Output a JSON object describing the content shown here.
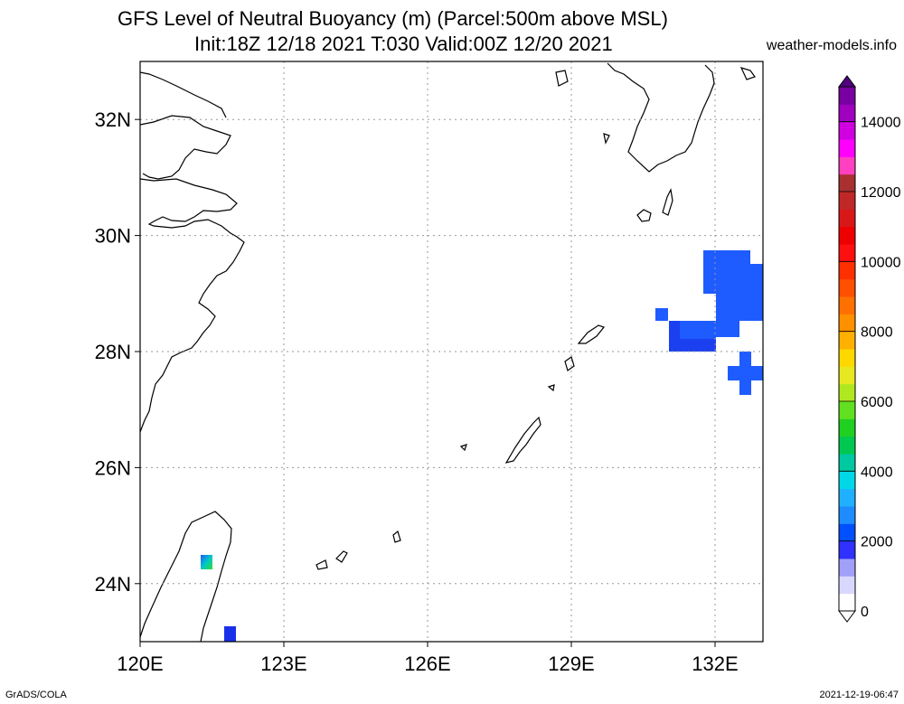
{
  "header": {
    "title_line1": "GFS Level of Neutral Buoyancy (m) (Parcel:500m above MSL)",
    "title_line2": "Init:18Z 12/18 2021 T:030 Valid:00Z 12/20 2021",
    "site": "weather-models.info"
  },
  "map": {
    "lat_labels": [
      "32N",
      "30N",
      "28N",
      "26N",
      "24N"
    ],
    "lon_labels": [
      "120E",
      "123E",
      "126E",
      "129E",
      "132E"
    ],
    "lat_values": [
      32,
      30,
      28,
      26,
      24
    ],
    "lon_values": [
      120,
      123,
      126,
      129,
      132
    ],
    "lon_range": [
      120,
      133
    ],
    "lat_range": [
      23,
      33
    ],
    "gridlines": true
  },
  "colorbar": {
    "labels": [
      "14000",
      "12000",
      "10000",
      "8000",
      "6000",
      "4000",
      "2000",
      "0"
    ],
    "range": [
      0,
      15000
    ]
  },
  "footer": {
    "left": "GrADS/COLA",
    "right": "2021-12-19-06:47"
  }
}
